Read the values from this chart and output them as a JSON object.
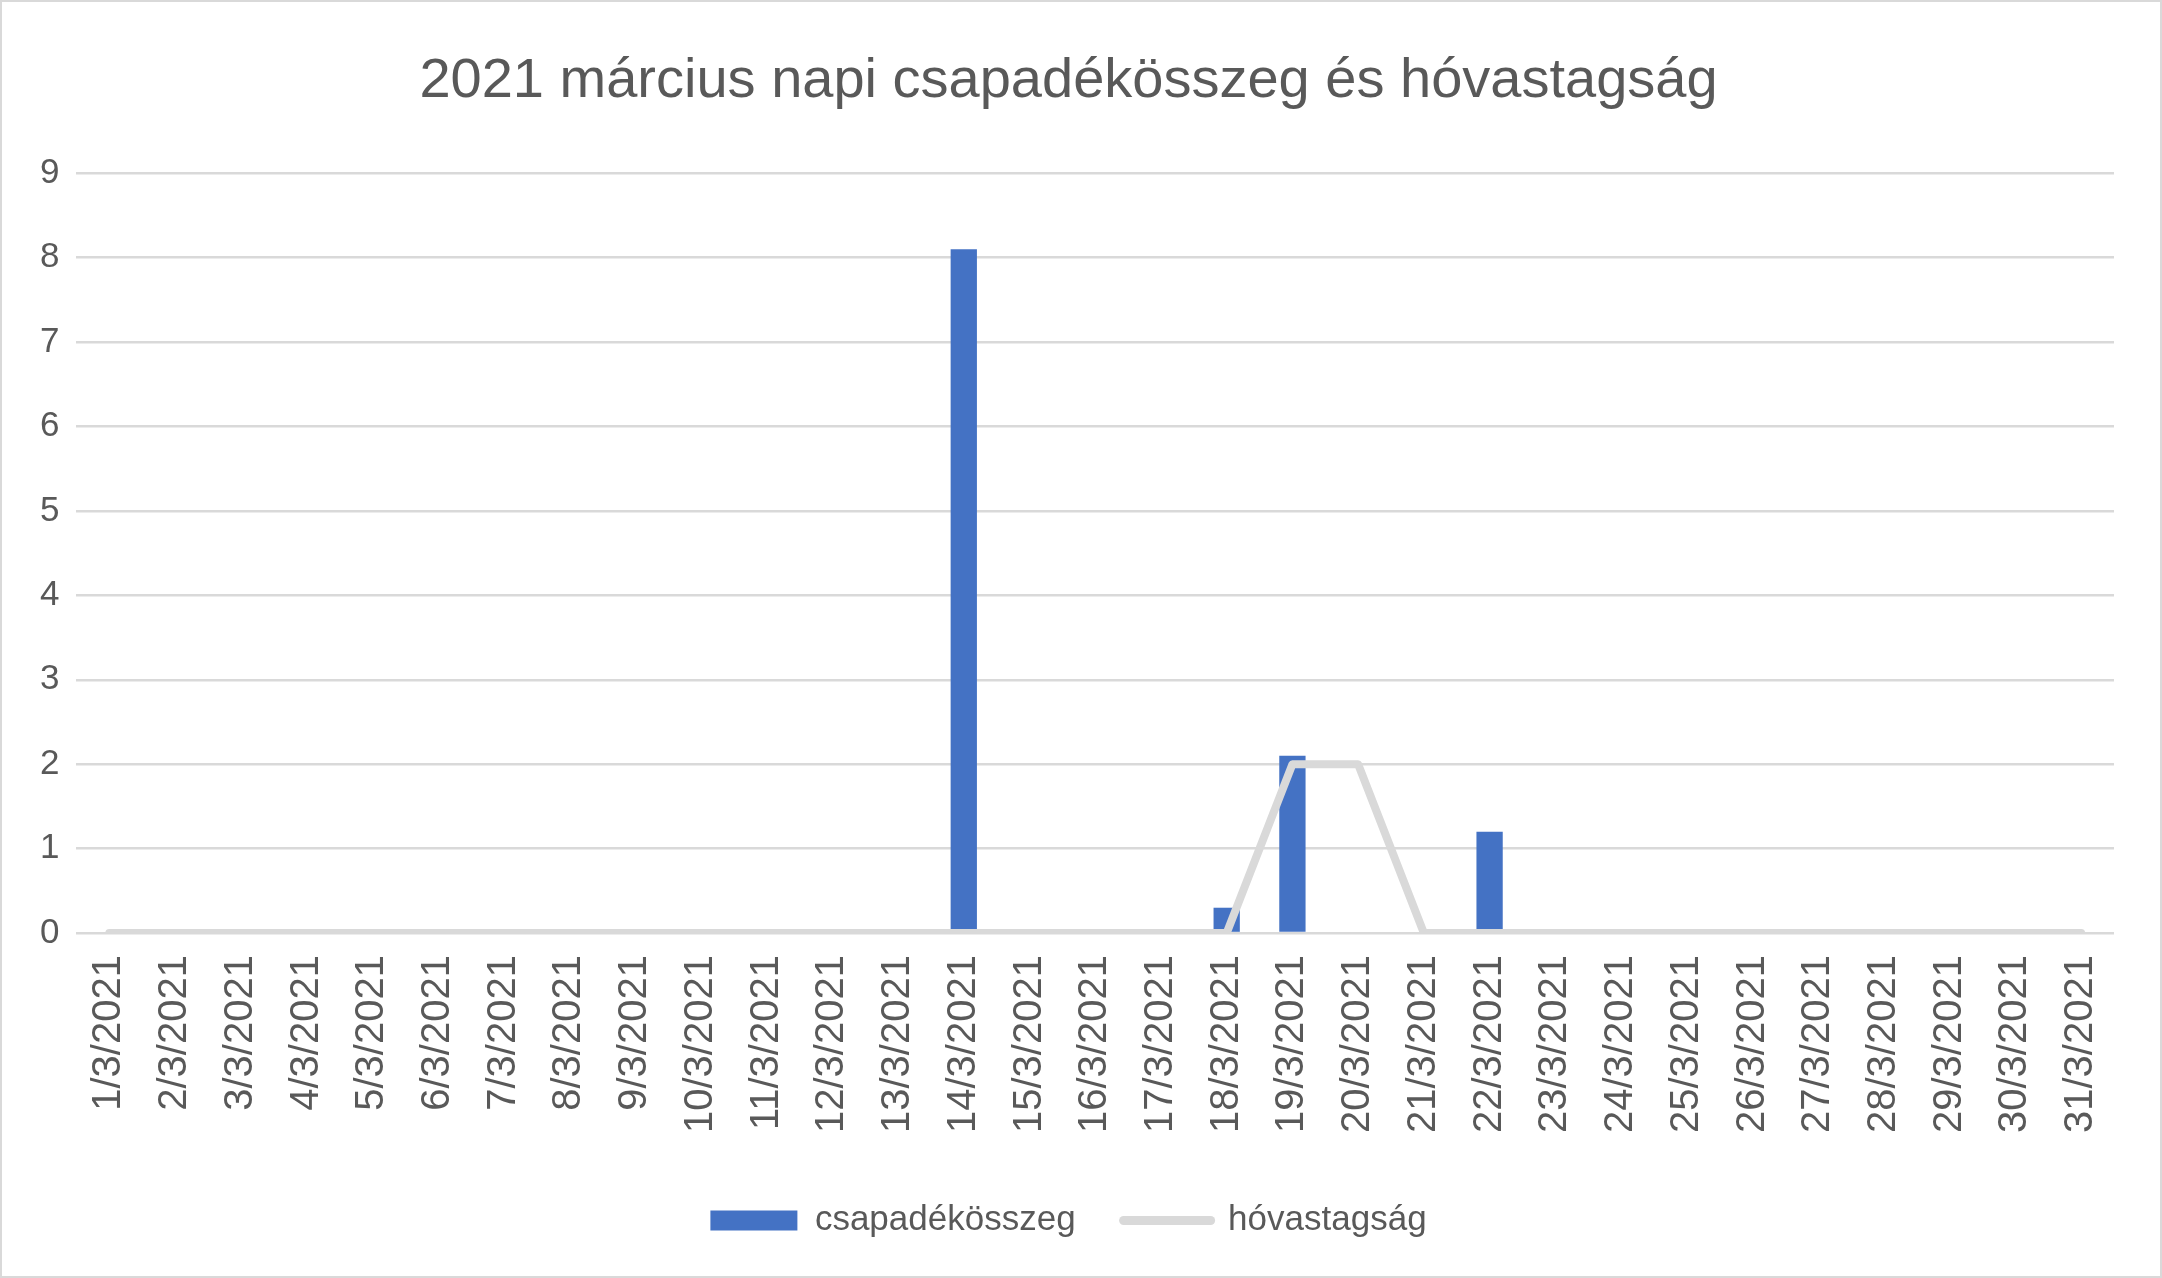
{
  "chart_data": {
    "type": "bar",
    "title": "2021 március napi csapadékösszeg és hóvastagság",
    "categories": [
      "1/3/2021",
      "2/3/2021",
      "3/3/2021",
      "4/3/2021",
      "5/3/2021",
      "6/3/2021",
      "7/3/2021",
      "8/3/2021",
      "9/3/2021",
      "10/3/2021",
      "11/3/2021",
      "12/3/2021",
      "13/3/2021",
      "14/3/2021",
      "15/3/2021",
      "16/3/2021",
      "17/3/2021",
      "18/3/2021",
      "19/3/2021",
      "20/3/2021",
      "21/3/2021",
      "22/3/2021",
      "23/3/2021",
      "24/3/2021",
      "25/3/2021",
      "26/3/2021",
      "27/3/2021",
      "28/3/2021",
      "29/3/2021",
      "30/3/2021",
      "31/3/2021"
    ],
    "series": [
      {
        "name": "csapadékösszeg",
        "color": "#4472c4",
        "values": [
          0,
          0,
          0,
          0,
          0,
          0,
          0,
          0,
          0,
          0,
          0,
          0,
          0,
          8.1,
          0,
          0,
          0,
          0.3,
          2.1,
          0,
          0,
          1.2,
          0,
          0,
          0,
          0,
          0,
          0,
          0,
          0,
          0
        ]
      },
      {
        "name": "hóvastagság",
        "type": "line",
        "color": "#d9d9d9",
        "values": [
          0,
          0,
          0,
          0,
          0,
          0,
          0,
          0,
          0,
          0,
          0,
          0,
          0,
          0,
          0,
          0,
          0,
          0,
          2,
          2,
          0,
          0,
          0,
          0,
          0,
          0,
          0,
          0,
          0,
          0,
          0
        ]
      }
    ],
    "ylim": [
      0,
      9
    ],
    "yticks": [
      0,
      1,
      2,
      3,
      4,
      5,
      6,
      7,
      8,
      9
    ],
    "grid": "y",
    "legend": "bottom",
    "marker": "none"
  }
}
